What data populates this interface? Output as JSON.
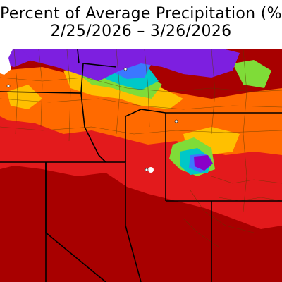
{
  "map": {
    "title": "Percent of Average Precipitation (%)",
    "date_range": "2/25/2026 – 3/26/2026",
    "colors": {
      "far_below": "#a80000",
      "below": "#e31a1c",
      "slightly_below": "#ff6a00",
      "near_normal": "#ffc000",
      "slightly_above": "#7fdc38",
      "above": "#00c8c8",
      "well_above": "#3b78ff",
      "far_above": "#7d1fe0",
      "extreme": "#8a00c8",
      "county_lines": "#5a3a00",
      "state_lines": "#000000"
    }
  }
}
